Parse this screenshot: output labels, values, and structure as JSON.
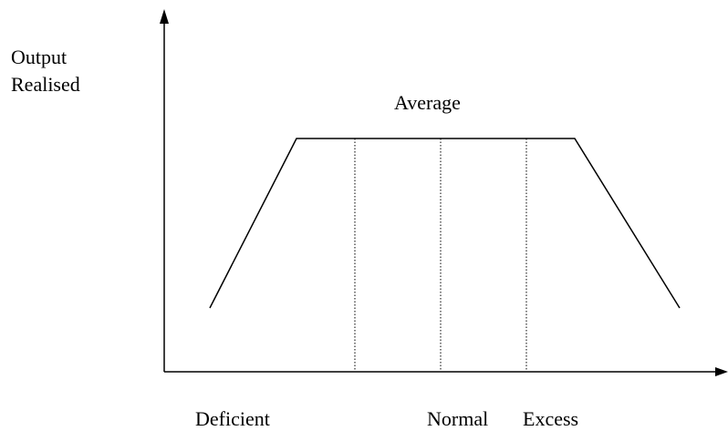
{
  "y_axis_label": [
    "Output",
    "Realised"
  ],
  "curve_label": "Average",
  "x_labels": [
    "Deficient",
    "Normal",
    "Excess"
  ]
}
